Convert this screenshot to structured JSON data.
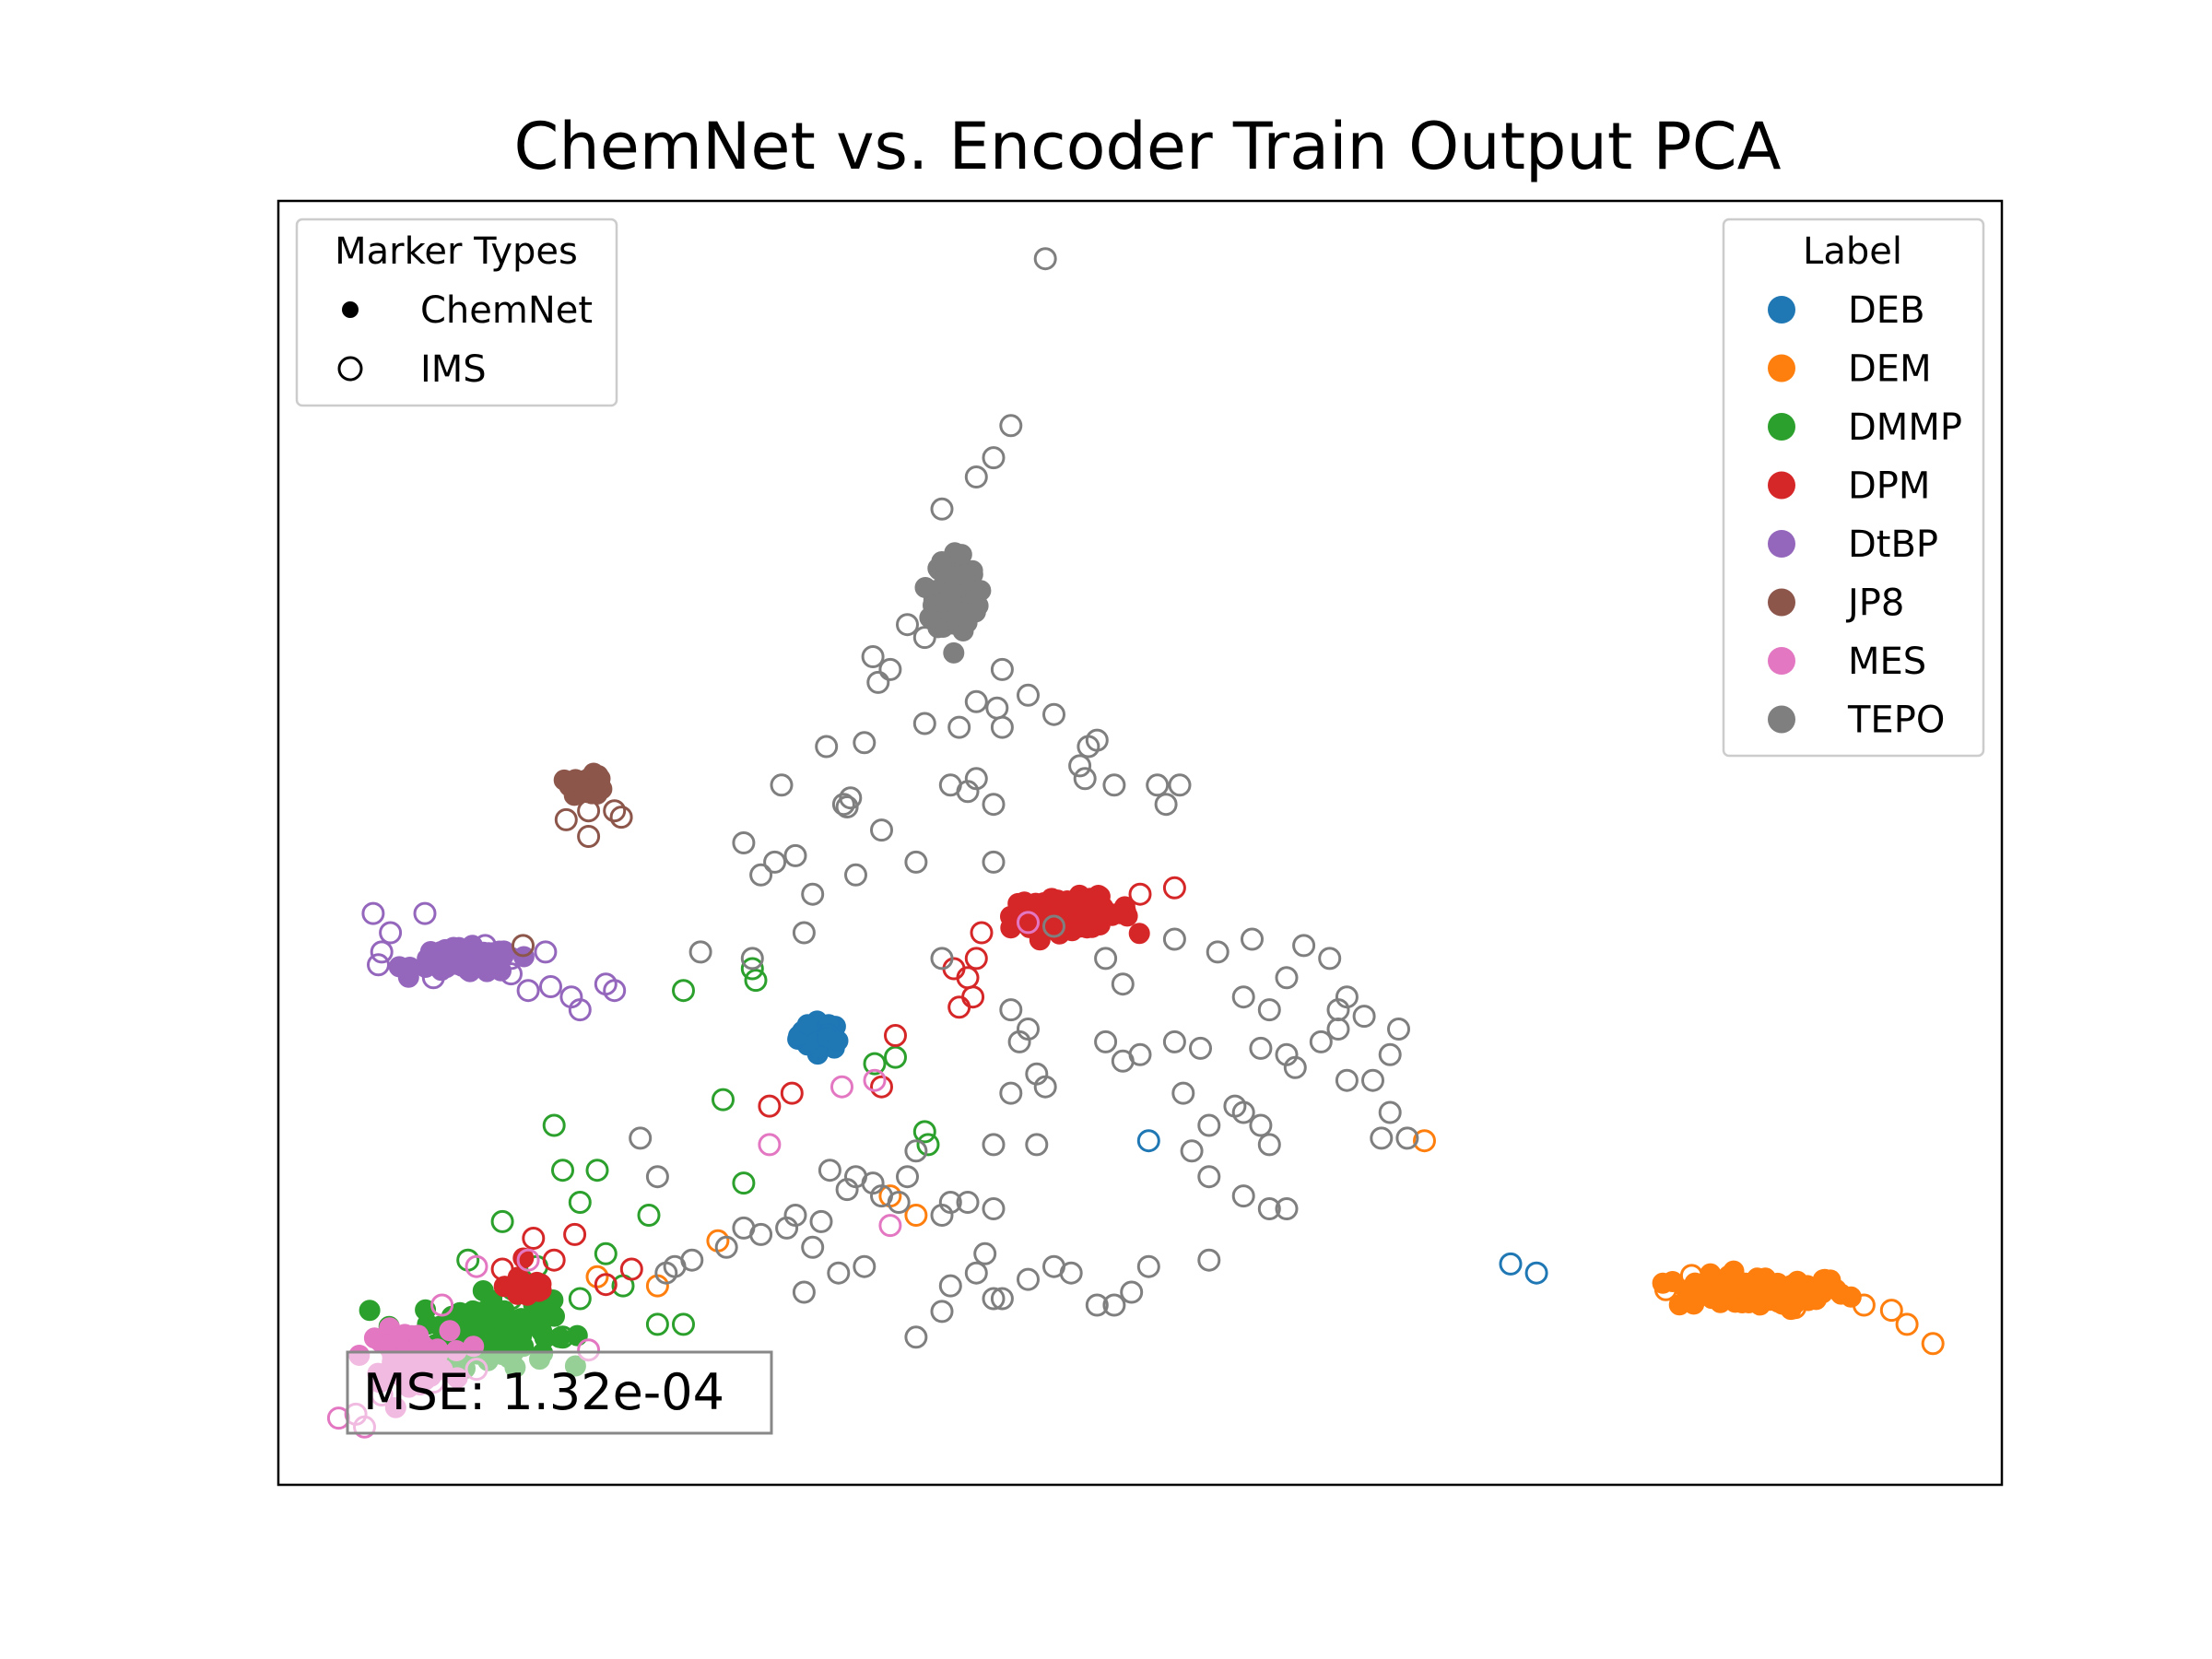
{
  "chart_data": {
    "type": "scatter",
    "title": "ChemNet vs. Encoder Train Output PCA",
    "xlabel": "",
    "ylabel": "",
    "xlim": [
      0,
      100
    ],
    "ylim": [
      0,
      100
    ],
    "show_ticks": false,
    "grid": false,
    "annotation": "MSE: 1.32e-04",
    "marker_legend": {
      "title": "Marker Types",
      "placement": "top-left",
      "entries": [
        {
          "label": "ChemNet",
          "marker": "filled"
        },
        {
          "label": "IMS",
          "marker": "hollow"
        }
      ]
    },
    "label_legend": {
      "title": "Label",
      "placement": "top-right"
    },
    "series": [
      {
        "name": "DEB",
        "color": "#1f77b4",
        "chemnet_clusters": [
          {
            "center": [
              31.5,
              35
            ],
            "spread": [
              1.2,
              1.0
            ],
            "count": 40
          }
        ],
        "ims_points": [
          [
            50.5,
            26.8
          ],
          [
            71.5,
            17.2
          ],
          [
            73.0,
            16.5
          ],
          [
            31.2,
            35.3
          ]
        ]
      },
      {
        "name": "DEM",
        "color": "#ff7f0e",
        "chemnet_clusters": [
          {
            "center": [
              86,
              15
            ],
            "spread": [
              4.5,
              1.2
            ],
            "count": 90
          }
        ],
        "ims_points": [
          [
            80.5,
            15.2
          ],
          [
            82,
            16.3
          ],
          [
            88,
            13.8
          ],
          [
            92,
            14.0
          ],
          [
            94.5,
            12.5
          ],
          [
            93.6,
            13.6
          ],
          [
            96.0,
            11.0
          ],
          [
            66.5,
            26.8
          ],
          [
            25.5,
            19.0
          ],
          [
            22.0,
            15.5
          ],
          [
            35.5,
            22.5
          ],
          [
            37.0,
            21.0
          ],
          [
            18.5,
            16.2
          ]
        ]
      },
      {
        "name": "DMMP",
        "color": "#2ca02c",
        "chemnet_clusters": [
          {
            "center": [
              12,
              12
            ],
            "spread": [
              3.5,
              2.5
            ],
            "count": 120
          }
        ],
        "ims_points": [
          [
            23.5,
            38.5
          ],
          [
            27.5,
            40.2
          ],
          [
            27.7,
            39.3
          ],
          [
            25.8,
            30.0
          ],
          [
            34.6,
            32.8
          ],
          [
            35.8,
            33.3
          ],
          [
            37.5,
            27.5
          ],
          [
            37.7,
            26.5
          ],
          [
            27.0,
            23.5
          ],
          [
            16.0,
            28.0
          ],
          [
            16.5,
            24.5
          ],
          [
            18.5,
            24.5
          ],
          [
            17.5,
            22.0
          ],
          [
            21.5,
            21.0
          ],
          [
            13.0,
            20.5
          ],
          [
            22.0,
            12.5
          ],
          [
            23.5,
            12.5
          ],
          [
            19.0,
            18.0
          ],
          [
            20.0,
            15.5
          ],
          [
            17.5,
            14.5
          ],
          [
            15.0,
            17.0
          ],
          [
            13.5,
            14.5
          ],
          [
            16.5,
            11.5
          ],
          [
            11.0,
            17.5
          ],
          [
            10.0,
            12.0
          ]
        ]
      },
      {
        "name": "DPM",
        "color": "#d62728",
        "chemnet_clusters": [
          {
            "center": [
              46,
              44.5
            ],
            "spread": [
              3.2,
              1.1
            ],
            "count": 100
          },
          {
            "center": [
              14.5,
              15.5
            ],
            "spread": [
              1.2,
              1.2
            ],
            "count": 20
          }
        ],
        "ims_points": [
          [
            40.5,
            41.0
          ],
          [
            40.0,
            39.5
          ],
          [
            40.3,
            38.0
          ],
          [
            39.2,
            40.2
          ],
          [
            40.8,
            43.0
          ],
          [
            39.5,
            37.2
          ],
          [
            50.0,
            46.0
          ],
          [
            52.0,
            46.5
          ],
          [
            35.8,
            35.0
          ],
          [
            28.5,
            29.5
          ],
          [
            29.8,
            30.5
          ],
          [
            35.0,
            31.0
          ],
          [
            14.8,
            19.2
          ],
          [
            17.2,
            19.5
          ],
          [
            20.5,
            16.8
          ],
          [
            19.0,
            15.6
          ],
          [
            16.0,
            17.5
          ],
          [
            13.0,
            16.8
          ]
        ]
      },
      {
        "name": "DtBP",
        "color": "#9467bd",
        "chemnet_clusters": [
          {
            "center": [
              10.8,
              40.8
            ],
            "spread": [
              2.6,
              0.9
            ],
            "count": 90
          }
        ],
        "ims_points": [
          [
            5.5,
            44.5
          ],
          [
            6.5,
            43.0
          ],
          [
            8.5,
            44.5
          ],
          [
            6.0,
            41.5
          ],
          [
            5.8,
            40.5
          ],
          [
            9.0,
            39.5
          ],
          [
            13.5,
            39.8
          ],
          [
            14.5,
            38.5
          ],
          [
            17.0,
            38.0
          ],
          [
            17.5,
            37.0
          ],
          [
            19.0,
            39.0
          ],
          [
            19.5,
            38.5
          ],
          [
            15.8,
            38.8
          ],
          [
            15.5,
            41.5
          ],
          [
            12.0,
            42.0
          ],
          [
            13.5,
            41.0
          ]
        ]
      },
      {
        "name": "JP8",
        "color": "#8c564b",
        "chemnet_clusters": [
          {
            "center": [
              18,
              54.5
            ],
            "spread": [
              0.9,
              0.7
            ],
            "count": 40
          }
        ],
        "ims_points": [
          [
            16.7,
            51.8
          ],
          [
            18.0,
            52.5
          ],
          [
            19.5,
            52.5
          ],
          [
            19.9,
            52.0
          ],
          [
            18.0,
            50.5
          ],
          [
            17.3,
            54.8
          ],
          [
            14.2,
            42.0
          ]
        ]
      },
      {
        "name": "MES",
        "color": "#e377c2",
        "chemnet_clusters": [
          {
            "center": [
              7.5,
              10.0
            ],
            "spread": [
              2.2,
              1.8
            ],
            "count": 90
          }
        ],
        "ims_points": [
          [
            43.5,
            43.8
          ],
          [
            32.7,
            31.0
          ],
          [
            34.6,
            31.5
          ],
          [
            28.5,
            26.5
          ],
          [
            35.5,
            20.2
          ],
          [
            14.5,
            17.5
          ],
          [
            11.5,
            17.0
          ],
          [
            9.5,
            14.0
          ],
          [
            18.0,
            10.5
          ],
          [
            11.5,
            9.0
          ],
          [
            9.0,
            8.0
          ],
          [
            6.0,
            7.0
          ],
          [
            4.5,
            5.5
          ],
          [
            3.5,
            5.2
          ],
          [
            5.0,
            4.5
          ]
        ]
      },
      {
        "name": "TEPO",
        "color": "#7f7f7f",
        "chemnet_clusters": [
          {
            "center": [
              39.3,
              69.5
            ],
            "spread": [
              1.1,
              3.0
            ],
            "count": 120
          }
        ],
        "ims_points": [
          [
            44.5,
            95.5
          ],
          [
            42.5,
            82.5
          ],
          [
            41.5,
            80.0
          ],
          [
            40.5,
            78.5
          ],
          [
            38.5,
            76.0
          ],
          [
            36.5,
            67.0
          ],
          [
            37.5,
            66.0
          ],
          [
            34.5,
            64.5
          ],
          [
            35.5,
            63.5
          ],
          [
            34.8,
            62.5
          ],
          [
            31.8,
            57.5
          ],
          [
            34.0,
            57.8
          ],
          [
            29.2,
            54.5
          ],
          [
            33.2,
            53.5
          ],
          [
            37.5,
            59.3
          ],
          [
            42.0,
            63.5
          ],
          [
            43.5,
            61.5
          ],
          [
            45.0,
            60.0
          ],
          [
            47.0,
            57.5
          ],
          [
            47.5,
            58.0
          ],
          [
            46.5,
            56.0
          ],
          [
            46.8,
            55.0
          ],
          [
            48.5,
            54.5
          ],
          [
            51.0,
            54.5
          ],
          [
            51.5,
            53.0
          ],
          [
            52.3,
            54.5
          ],
          [
            40.5,
            61.0
          ],
          [
            41.7,
            60.5
          ],
          [
            42.0,
            59.0
          ],
          [
            39.5,
            59.0
          ],
          [
            40.5,
            55.0
          ],
          [
            40.0,
            54.0
          ],
          [
            39.0,
            54.5
          ],
          [
            41.5,
            53.0
          ],
          [
            41.5,
            48.5
          ],
          [
            35.0,
            51.0
          ],
          [
            32.8,
            53.0
          ],
          [
            33.0,
            52.8
          ],
          [
            27.0,
            50.0
          ],
          [
            28.8,
            48.5
          ],
          [
            30.0,
            49.0
          ],
          [
            28.0,
            47.5
          ],
          [
            31.0,
            46.0
          ],
          [
            33.5,
            47.5
          ],
          [
            37.0,
            48.5
          ],
          [
            30.5,
            43.0
          ],
          [
            24.5,
            41.5
          ],
          [
            27.5,
            41.0
          ],
          [
            38.5,
            41.0
          ],
          [
            45.0,
            43.5
          ],
          [
            48.0,
            41.0
          ],
          [
            52.0,
            42.5
          ],
          [
            54.5,
            41.5
          ],
          [
            56.5,
            42.5
          ],
          [
            59.5,
            42.0
          ],
          [
            61.0,
            41.0
          ],
          [
            58.5,
            39.5
          ],
          [
            56.0,
            38.0
          ],
          [
            57.5,
            37.0
          ],
          [
            62.0,
            38.0
          ],
          [
            61.5,
            37.0
          ],
          [
            63.0,
            36.5
          ],
          [
            49.0,
            39.0
          ],
          [
            43.5,
            35.5
          ],
          [
            42.5,
            37.0
          ],
          [
            43.0,
            34.5
          ],
          [
            44.0,
            32.0
          ],
          [
            42.5,
            30.5
          ],
          [
            44.5,
            31.0
          ],
          [
            48.0,
            34.5
          ],
          [
            49.0,
            33.0
          ],
          [
            50.0,
            33.5
          ],
          [
            52.0,
            34.5
          ],
          [
            53.5,
            34.0
          ],
          [
            57.0,
            34.0
          ],
          [
            58.5,
            33.5
          ],
          [
            59.0,
            32.5
          ],
          [
            60.5,
            34.5
          ],
          [
            61.5,
            35.5
          ],
          [
            62.0,
            31.5
          ],
          [
            64.5,
            33.5
          ],
          [
            65.0,
            35.5
          ],
          [
            63.5,
            31.5
          ],
          [
            64.5,
            29.0
          ],
          [
            64.0,
            27.0
          ],
          [
            65.5,
            27.0
          ],
          [
            52.5,
            30.5
          ],
          [
            54.0,
            28.0
          ],
          [
            55.5,
            29.5
          ],
          [
            53.0,
            26.0
          ],
          [
            56.0,
            29.0
          ],
          [
            57.0,
            28.0
          ],
          [
            57.5,
            26.5
          ],
          [
            54.0,
            24.0
          ],
          [
            56.0,
            22.5
          ],
          [
            57.5,
            21.5
          ],
          [
            58.5,
            21.5
          ],
          [
            54.0,
            17.5
          ],
          [
            50.5,
            17.0
          ],
          [
            49.5,
            15.0
          ],
          [
            47.5,
            14.0
          ],
          [
            48.5,
            14.0
          ],
          [
            46.0,
            16.5
          ],
          [
            45.0,
            17.0
          ],
          [
            43.5,
            16.0
          ],
          [
            42.0,
            14.5
          ],
          [
            41.5,
            14.5
          ],
          [
            40.5,
            16.5
          ],
          [
            39.0,
            15.5
          ],
          [
            38.5,
            13.5
          ],
          [
            37.0,
            11.5
          ],
          [
            41.0,
            18.0
          ],
          [
            44.0,
            26.5
          ],
          [
            41.5,
            26.5
          ],
          [
            37.0,
            26.0
          ],
          [
            34.0,
            17.0
          ],
          [
            32.5,
            16.5
          ],
          [
            31.0,
            18.5
          ],
          [
            30.5,
            15.0
          ],
          [
            31.5,
            20.5
          ],
          [
            30.0,
            21.0
          ],
          [
            29.5,
            20.0
          ],
          [
            28.0,
            19.5
          ],
          [
            27.0,
            20.0
          ],
          [
            26.0,
            18.5
          ],
          [
            24.0,
            17.5
          ],
          [
            22.5,
            16.5
          ],
          [
            23.0,
            17.0
          ],
          [
            21.0,
            27.0
          ],
          [
            22.0,
            24.0
          ],
          [
            33.5,
            24.0
          ],
          [
            32.0,
            24.5
          ],
          [
            33.0,
            23.0
          ],
          [
            34.5,
            23.5
          ],
          [
            35.0,
            22.5
          ],
          [
            36.0,
            22.0
          ],
          [
            36.5,
            24.0
          ],
          [
            38.5,
            21.0
          ],
          [
            39.0,
            22.0
          ],
          [
            40.0,
            22.0
          ],
          [
            41.5,
            21.5
          ]
        ]
      }
    ]
  }
}
